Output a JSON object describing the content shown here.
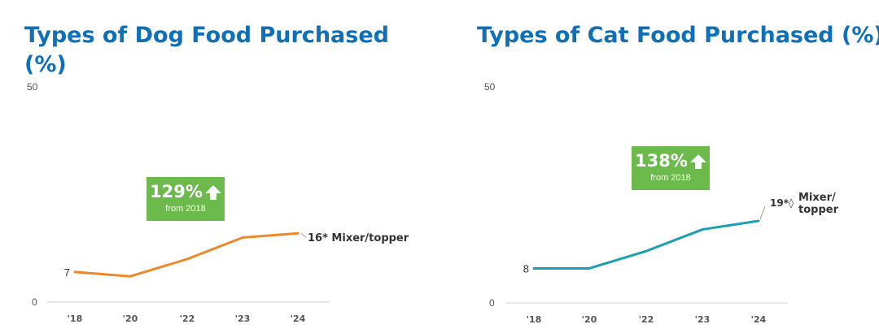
{
  "chart_data": [
    {
      "type": "line",
      "title": "Types of Dog Food Purchased (%)",
      "x": [
        "'18",
        "'20",
        "'22",
        "'23",
        "'24"
      ],
      "ylim": [
        0,
        50
      ],
      "y_ticks": [
        "50",
        "0"
      ],
      "series": [
        {
          "name": "Mixer/topper",
          "values": [
            7,
            6,
            10,
            15,
            16
          ],
          "color": "#f0882a"
        }
      ],
      "start_label": "7",
      "end_value_label": "16*",
      "end_series_label": "Mixer/topper",
      "badge": {
        "value": "129%",
        "sub": "from 2018",
        "color": "#6cba4b"
      },
      "grid": false
    },
    {
      "type": "line",
      "title": "Types of Cat Food Purchased (%)",
      "x": [
        "'18",
        "'20",
        "'22",
        "'23",
        "'24"
      ],
      "ylim": [
        0,
        50
      ],
      "y_ticks": [
        "50",
        "0"
      ],
      "series": [
        {
          "name": "Mixer/topper",
          "values": [
            8,
            8,
            12,
            17,
            19
          ],
          "color": "#1a9fb5"
        }
      ],
      "start_label": "8",
      "end_value_label": "19*◊",
      "end_series_label": "Mixer/topper",
      "end_series_label_lines": [
        "Mixer/",
        "topper"
      ],
      "badge": {
        "value": "138%",
        "sub": "from 2018",
        "color": "#6cba4b"
      },
      "grid": false
    }
  ]
}
